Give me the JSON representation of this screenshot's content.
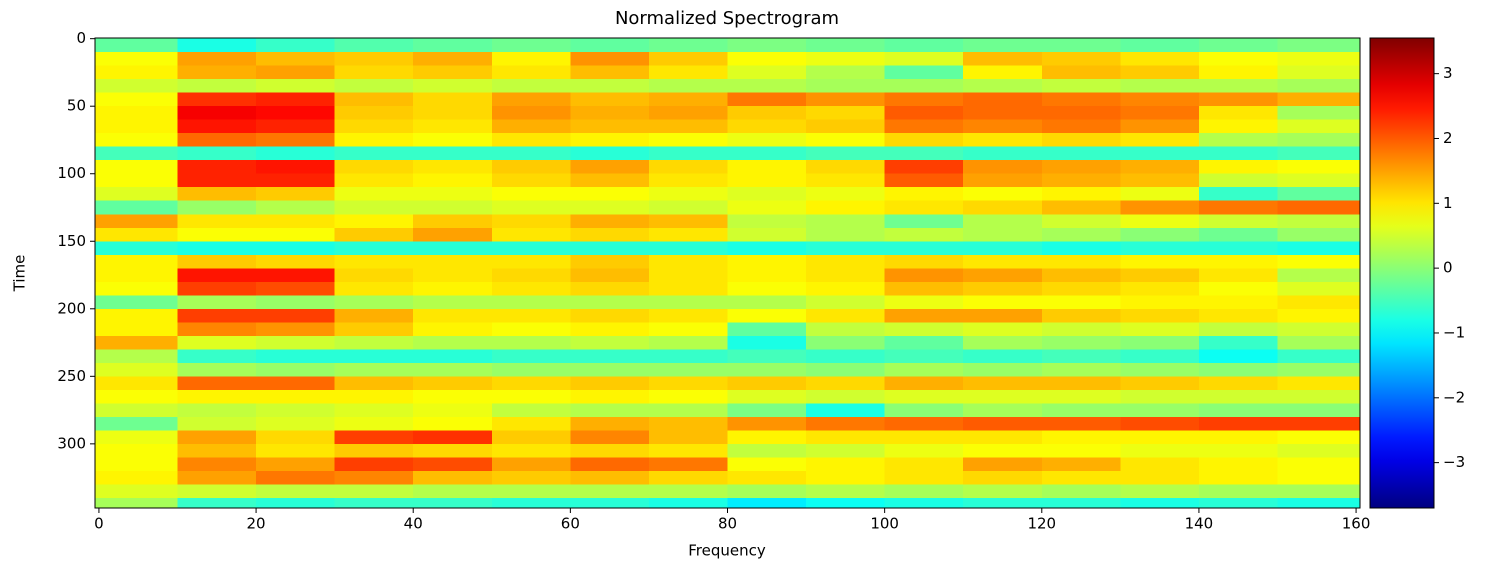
{
  "chart_data": {
    "type": "heatmap",
    "title": "Normalized Spectrogram",
    "xlabel": "Frequency",
    "ylabel": "Time",
    "xlim": [
      -0.5,
      160.5
    ],
    "ylim": [
      -0.5,
      347.5
    ],
    "y_inverted": true,
    "xticks": [
      0,
      20,
      40,
      60,
      80,
      100,
      120,
      140,
      160
    ],
    "yticks": [
      0,
      50,
      100,
      150,
      200,
      250,
      300
    ],
    "colormap": "jet",
    "clim": [
      -3.7,
      3.55
    ],
    "cbar_ticks": [
      {
        "value": -3,
        "label": "−3"
      },
      {
        "value": -2,
        "label": "−2"
      },
      {
        "value": -1,
        "label": "−1"
      },
      0,
      1,
      2,
      3
    ],
    "xbins": [
      -0.5,
      10,
      20,
      30,
      40,
      50,
      60,
      70,
      80,
      90,
      100,
      110,
      120,
      130,
      140,
      150,
      160.5
    ],
    "ybins": [
      -0.5,
      10,
      20,
      30,
      40,
      50,
      60,
      70,
      80,
      90,
      100,
      110,
      120,
      130,
      140,
      150,
      160,
      170,
      180,
      190,
      200,
      210,
      220,
      230,
      240,
      250,
      260,
      270,
      280,
      290,
      300,
      310,
      320,
      330,
      340,
      347.5
    ],
    "values": [
      [
        -0.3,
        -0.8,
        -0.6,
        -0.4,
        -0.3,
        -0.2,
        -0.3,
        -0.2,
        -0.1,
        -0.2,
        -0.3,
        -0.2,
        -0.2,
        -0.3,
        -0.2,
        -0.1
      ],
      [
        0.8,
        1.5,
        1.3,
        1.2,
        1.4,
        0.9,
        1.6,
        1.2,
        0.8,
        0.7,
        0.6,
        1.3,
        1.2,
        1.0,
        0.8,
        0.7
      ],
      [
        0.9,
        1.4,
        1.5,
        1.1,
        1.2,
        1.0,
        1.3,
        1.0,
        0.6,
        0.3,
        -0.3,
        0.9,
        1.3,
        1.2,
        0.9,
        0.6
      ],
      [
        0.5,
        0.4,
        0.5,
        0.4,
        0.5,
        0.4,
        0.4,
        0.3,
        0.3,
        0.2,
        0.2,
        0.3,
        0.4,
        0.3,
        0.3,
        0.2
      ],
      [
        0.8,
        2.3,
        2.4,
        1.3,
        1.1,
        1.5,
        1.3,
        1.4,
        1.8,
        1.6,
        1.8,
        1.9,
        1.8,
        1.7,
        1.6,
        1.4
      ],
      [
        0.9,
        2.7,
        2.6,
        1.2,
        1.1,
        1.6,
        1.4,
        1.5,
        1.2,
        1.1,
        2.0,
        1.9,
        1.9,
        1.8,
        1.0,
        0.2
      ],
      [
        0.9,
        2.5,
        2.4,
        1.1,
        1.0,
        1.4,
        1.3,
        1.3,
        1.1,
        1.2,
        1.8,
        1.7,
        1.8,
        1.6,
        0.9,
        0.6
      ],
      [
        0.8,
        1.9,
        1.8,
        0.9,
        0.8,
        1.0,
        0.9,
        0.8,
        0.7,
        0.8,
        1.1,
        1.0,
        1.1,
        1.0,
        0.3,
        0.2
      ],
      [
        -0.5,
        -0.6,
        -0.7,
        -0.6,
        -0.6,
        -0.6,
        -0.7,
        -0.6,
        -0.6,
        -0.5,
        -0.5,
        -0.6,
        -0.6,
        -0.6,
        -0.6,
        -0.5
      ],
      [
        0.8,
        2.4,
        2.5,
        1.1,
        1.0,
        1.2,
        1.5,
        1.1,
        0.9,
        1.1,
        2.2,
        1.6,
        1.5,
        1.4,
        0.9,
        0.8
      ],
      [
        0.8,
        2.4,
        2.4,
        1.0,
        0.9,
        1.1,
        1.3,
        1.0,
        0.9,
        1.0,
        2.0,
        1.5,
        1.4,
        1.3,
        0.5,
        0.6
      ],
      [
        0.6,
        1.3,
        1.2,
        0.7,
        0.7,
        0.8,
        0.8,
        0.7,
        0.6,
        0.7,
        0.9,
        0.8,
        0.9,
        0.7,
        -0.6,
        -0.3
      ],
      [
        -0.3,
        0.1,
        0.3,
        0.5,
        0.5,
        0.6,
        0.6,
        0.5,
        0.7,
        0.9,
        1.0,
        1.1,
        1.3,
        1.6,
        1.8,
        1.9
      ],
      [
        1.5,
        1.0,
        1.0,
        0.9,
        1.2,
        1.1,
        1.4,
        1.3,
        0.4,
        0.3,
        -0.2,
        0.3,
        0.5,
        0.7,
        0.5,
        0.4
      ],
      [
        1.0,
        0.8,
        0.8,
        1.2,
        1.5,
        1.0,
        1.1,
        1.0,
        0.5,
        0.3,
        0.4,
        0.3,
        0.2,
        0.0,
        -0.2,
        0.1
      ],
      [
        -0.7,
        -0.8,
        -0.8,
        -0.7,
        -0.7,
        -0.7,
        -0.7,
        -0.7,
        -0.8,
        -0.7,
        -0.7,
        -0.7,
        -0.8,
        -0.7,
        -0.7,
        -0.8
      ],
      [
        0.9,
        1.2,
        1.1,
        1.0,
        1.0,
        1.0,
        1.2,
        1.0,
        0.9,
        1.0,
        1.1,
        1.0,
        1.0,
        0.9,
        0.9,
        0.8
      ],
      [
        0.9,
        2.5,
        2.5,
        1.1,
        1.0,
        1.1,
        1.3,
        1.0,
        0.9,
        1.0,
        1.6,
        1.5,
        1.3,
        1.2,
        1.0,
        0.3
      ],
      [
        0.8,
        2.2,
        2.1,
        1.0,
        0.9,
        1.0,
        1.1,
        1.0,
        0.8,
        0.9,
        1.3,
        1.2,
        1.1,
        1.0,
        0.8,
        0.6
      ],
      [
        -0.2,
        0.2,
        0.1,
        0.2,
        0.3,
        0.3,
        0.3,
        0.3,
        0.3,
        0.5,
        0.7,
        0.8,
        0.8,
        0.9,
        0.9,
        1.0
      ],
      [
        0.9,
        2.2,
        2.2,
        1.4,
        1.0,
        1.0,
        1.1,
        1.0,
        0.8,
        1.0,
        1.5,
        1.5,
        1.2,
        1.1,
        1.0,
        0.9
      ],
      [
        0.9,
        1.7,
        1.6,
        1.2,
        0.9,
        0.8,
        0.9,
        0.8,
        -0.3,
        0.4,
        0.5,
        0.6,
        0.5,
        0.6,
        0.4,
        0.5
      ],
      [
        1.4,
        0.6,
        0.5,
        0.4,
        0.3,
        0.3,
        0.4,
        0.3,
        -0.8,
        0.0,
        -0.3,
        0.2,
        0.1,
        0.0,
        -0.6,
        0.2
      ],
      [
        0.3,
        -0.6,
        -0.7,
        -0.7,
        -0.7,
        -0.6,
        -0.6,
        -0.6,
        -0.5,
        -0.6,
        -0.5,
        -0.6,
        -0.5,
        -0.6,
        -0.9,
        -0.6
      ],
      [
        0.6,
        0.2,
        0.1,
        0.2,
        0.2,
        0.1,
        0.1,
        0.1,
        0.1,
        0.0,
        0.2,
        0.1,
        0.2,
        0.1,
        0.0,
        0.1
      ],
      [
        1.0,
        1.9,
        1.9,
        1.3,
        1.2,
        1.1,
        1.2,
        1.1,
        1.2,
        1.1,
        1.4,
        1.3,
        1.3,
        1.2,
        1.1,
        1.0
      ],
      [
        0.8,
        0.9,
        0.9,
        0.9,
        0.8,
        0.8,
        0.9,
        0.8,
        0.6,
        0.5,
        0.6,
        0.6,
        0.6,
        0.5,
        0.5,
        0.5
      ],
      [
        0.5,
        0.4,
        0.5,
        0.6,
        0.7,
        0.4,
        0.3,
        0.3,
        -0.1,
        -0.8,
        0.0,
        0.2,
        0.1,
        0.1,
        0.0,
        0.0
      ],
      [
        -0.2,
        0.5,
        0.6,
        0.7,
        0.8,
        1.0,
        1.4,
        1.3,
        1.6,
        1.8,
        1.9,
        2.0,
        2.0,
        2.1,
        2.2,
        2.2
      ],
      [
        0.7,
        1.5,
        1.1,
        2.2,
        2.3,
        1.2,
        1.7,
        1.3,
        0.9,
        1.0,
        1.0,
        1.0,
        0.9,
        0.9,
        0.9,
        0.8
      ],
      [
        0.8,
        1.3,
        1.0,
        1.2,
        1.1,
        1.0,
        1.1,
        1.0,
        0.4,
        0.5,
        0.7,
        0.8,
        0.8,
        0.7,
        0.7,
        0.6
      ],
      [
        0.8,
        1.7,
        1.5,
        2.2,
        2.1,
        1.5,
        1.9,
        1.8,
        0.8,
        0.9,
        1.0,
        1.5,
        1.4,
        1.0,
        0.9,
        0.8
      ],
      [
        0.9,
        1.5,
        1.8,
        1.7,
        1.3,
        1.2,
        1.3,
        1.1,
        1.0,
        0.9,
        1.0,
        1.1,
        1.0,
        1.0,
        0.9,
        0.8
      ],
      [
        0.6,
        0.5,
        0.4,
        0.4,
        0.3,
        0.3,
        0.3,
        0.3,
        0.2,
        0.3,
        0.2,
        0.3,
        0.2,
        0.3,
        0.2,
        0.2
      ],
      [
        0.2,
        -0.6,
        -0.7,
        -0.6,
        -0.6,
        -0.7,
        -0.7,
        -0.8,
        -1.1,
        -0.9,
        -0.8,
        -0.7,
        -0.7,
        -0.8,
        -0.7,
        -0.8
      ]
    ]
  }
}
